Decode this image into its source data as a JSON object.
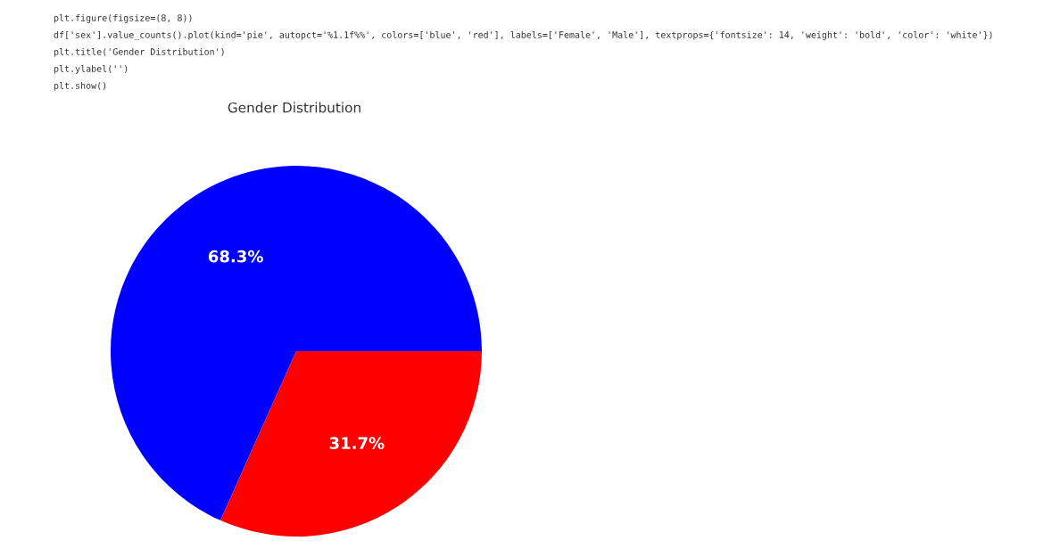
{
  "chart_data": {
    "type": "pie",
    "title": "Gender Distribution",
    "categories": [
      null,
      null
    ],
    "values": [
      68.3,
      31.7
    ],
    "colors": [
      "#0000ff",
      "#ff0000"
    ],
    "value_labels": [
      "68.3%",
      "31.7%"
    ],
    "annotations": [
      "plt.figure(figsize=(8, 8))",
      "df['sex'].value_counts().plot(kind='pie', autopct='%1.1f%%', colors=['blue', 'red'], labels=['Female', 'Male'], textprops={'fontsize': 14, 'weight': 'bold', 'color': 'white'})",
      "plt.title('Gender Distribution')",
      "plt.ylabel('')",
      "plt.show()"
    ]
  }
}
